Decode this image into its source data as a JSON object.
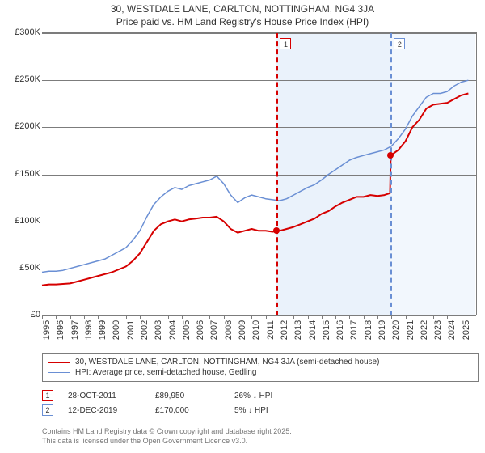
{
  "title_line1": "30, WESTDALE LANE, CARLTON, NOTTINGHAM, NG4 3JA",
  "title_line2": "Price paid vs. HM Land Registry's House Price Index (HPI)",
  "chart": {
    "x_years_start": 1995,
    "x_years_end": 2026,
    "x_tick_step": 1,
    "y_min": 0,
    "y_max": 300000,
    "y_tick_step": 50000,
    "y_tick_labels": [
      "£0",
      "£50K",
      "£100K",
      "£150K",
      "£200K",
      "£250K",
      "£300K"
    ],
    "grid_color": "#7c7c7c",
    "background_color": "#ffffff",
    "shade_bands": [
      {
        "from_year": 2011.8,
        "to_year": 2019.95,
        "color": "#eaf2fb"
      },
      {
        "from_year": 2019.95,
        "to_year": 2026,
        "color": "#f2f7fd"
      }
    ],
    "markers": [
      {
        "id": "1",
        "year": 2011.8,
        "color": "#d60000"
      },
      {
        "id": "2",
        "year": 2019.95,
        "color": "#6a8fd4"
      }
    ],
    "series_price": {
      "color": "#d60000",
      "width": 2,
      "points_year_value": [
        [
          1995,
          32000
        ],
        [
          1995.5,
          33000
        ],
        [
          1996,
          33000
        ],
        [
          1996.5,
          33500
        ],
        [
          1997,
          34000
        ],
        [
          1997.5,
          36000
        ],
        [
          1998,
          38000
        ],
        [
          1998.5,
          40000
        ],
        [
          1999,
          42000
        ],
        [
          1999.5,
          44000
        ],
        [
          2000,
          46000
        ],
        [
          2000.5,
          49000
        ],
        [
          2001,
          52000
        ],
        [
          2001.5,
          58000
        ],
        [
          2002,
          66000
        ],
        [
          2002.5,
          78000
        ],
        [
          2003,
          90000
        ],
        [
          2003.5,
          97000
        ],
        [
          2004,
          100000
        ],
        [
          2004.5,
          102000
        ],
        [
          2005,
          100000
        ],
        [
          2005.5,
          102000
        ],
        [
          2006,
          103000
        ],
        [
          2006.5,
          104000
        ],
        [
          2007,
          104000
        ],
        [
          2007.5,
          105000
        ],
        [
          2008,
          100000
        ],
        [
          2008.5,
          92000
        ],
        [
          2009,
          88000
        ],
        [
          2009.5,
          90000
        ],
        [
          2010,
          92000
        ],
        [
          2010.5,
          90000
        ],
        [
          2011,
          90000
        ],
        [
          2011.5,
          89000
        ],
        [
          2012,
          90000
        ],
        [
          2012.5,
          92000
        ],
        [
          2013,
          94000
        ],
        [
          2013.5,
          97000
        ],
        [
          2014,
          100000
        ],
        [
          2014.5,
          103000
        ],
        [
          2015,
          108000
        ],
        [
          2015.5,
          111000
        ],
        [
          2016,
          116000
        ],
        [
          2016.5,
          120000
        ],
        [
          2017,
          123000
        ],
        [
          2017.5,
          126000
        ],
        [
          2018,
          126000
        ],
        [
          2018.5,
          128000
        ],
        [
          2019,
          127000
        ],
        [
          2019.5,
          128000
        ],
        [
          2019.9,
          130000
        ],
        [
          2019.95,
          170000
        ],
        [
          2020.5,
          176000
        ],
        [
          2021,
          185000
        ],
        [
          2021.5,
          200000
        ],
        [
          2022,
          208000
        ],
        [
          2022.5,
          220000
        ],
        [
          2023,
          224000
        ],
        [
          2023.5,
          225000
        ],
        [
          2024,
          226000
        ],
        [
          2024.5,
          230000
        ],
        [
          2025,
          234000
        ],
        [
          2025.5,
          236000
        ]
      ]
    },
    "series_hpi": {
      "color": "#6a8fd4",
      "width": 1.5,
      "points_year_value": [
        [
          1995,
          46000
        ],
        [
          1995.5,
          47000
        ],
        [
          1996,
          47000
        ],
        [
          1996.5,
          48000
        ],
        [
          1997,
          50000
        ],
        [
          1997.5,
          52000
        ],
        [
          1998,
          54000
        ],
        [
          1998.5,
          56000
        ],
        [
          1999,
          58000
        ],
        [
          1999.5,
          60000
        ],
        [
          2000,
          64000
        ],
        [
          2000.5,
          68000
        ],
        [
          2001,
          72000
        ],
        [
          2001.5,
          80000
        ],
        [
          2002,
          90000
        ],
        [
          2002.5,
          105000
        ],
        [
          2003,
          118000
        ],
        [
          2003.5,
          126000
        ],
        [
          2004,
          132000
        ],
        [
          2004.5,
          136000
        ],
        [
          2005,
          134000
        ],
        [
          2005.5,
          138000
        ],
        [
          2006,
          140000
        ],
        [
          2006.5,
          142000
        ],
        [
          2007,
          144000
        ],
        [
          2007.5,
          148000
        ],
        [
          2008,
          140000
        ],
        [
          2008.5,
          128000
        ],
        [
          2009,
          120000
        ],
        [
          2009.5,
          125000
        ],
        [
          2010,
          128000
        ],
        [
          2010.5,
          126000
        ],
        [
          2011,
          124000
        ],
        [
          2011.5,
          123000
        ],
        [
          2012,
          122000
        ],
        [
          2012.5,
          124000
        ],
        [
          2013,
          128000
        ],
        [
          2013.5,
          132000
        ],
        [
          2014,
          136000
        ],
        [
          2014.5,
          139000
        ],
        [
          2015,
          144000
        ],
        [
          2015.5,
          150000
        ],
        [
          2016,
          155000
        ],
        [
          2016.5,
          160000
        ],
        [
          2017,
          165000
        ],
        [
          2017.5,
          168000
        ],
        [
          2018,
          170000
        ],
        [
          2018.5,
          172000
        ],
        [
          2019,
          174000
        ],
        [
          2019.5,
          176000
        ],
        [
          2020,
          180000
        ],
        [
          2020.5,
          188000
        ],
        [
          2021,
          198000
        ],
        [
          2021.5,
          212000
        ],
        [
          2022,
          222000
        ],
        [
          2022.5,
          232000
        ],
        [
          2023,
          236000
        ],
        [
          2023.5,
          236000
        ],
        [
          2024,
          238000
        ],
        [
          2024.5,
          244000
        ],
        [
          2025,
          248000
        ],
        [
          2025.5,
          250000
        ]
      ]
    },
    "sale_points": [
      {
        "year": 2011.8,
        "value": 89950,
        "color": "#d60000"
      },
      {
        "year": 2019.95,
        "value": 170000,
        "color": "#d60000"
      }
    ]
  },
  "legend": {
    "items": [
      {
        "label": "30, WESTDALE LANE, CARLTON, NOTTINGHAM, NG4 3JA (semi-detached house)",
        "color": "#d60000",
        "width": 2
      },
      {
        "label": "HPI: Average price, semi-detached house, Gedling",
        "color": "#6a8fd4",
        "width": 1.5
      }
    ]
  },
  "transactions": [
    {
      "key": "1",
      "key_color": "#d60000",
      "date": "28-OCT-2011",
      "price": "£89,950",
      "diff": "26% ↓ HPI"
    },
    {
      "key": "2",
      "key_color": "#6a8fd4",
      "date": "12-DEC-2019",
      "price": "£170,000",
      "diff": "5% ↓ HPI"
    }
  ],
  "footer_line1": "Contains HM Land Registry data © Crown copyright and database right 2025.",
  "footer_line2": "This data is licensed under the Open Government Licence v3.0."
}
